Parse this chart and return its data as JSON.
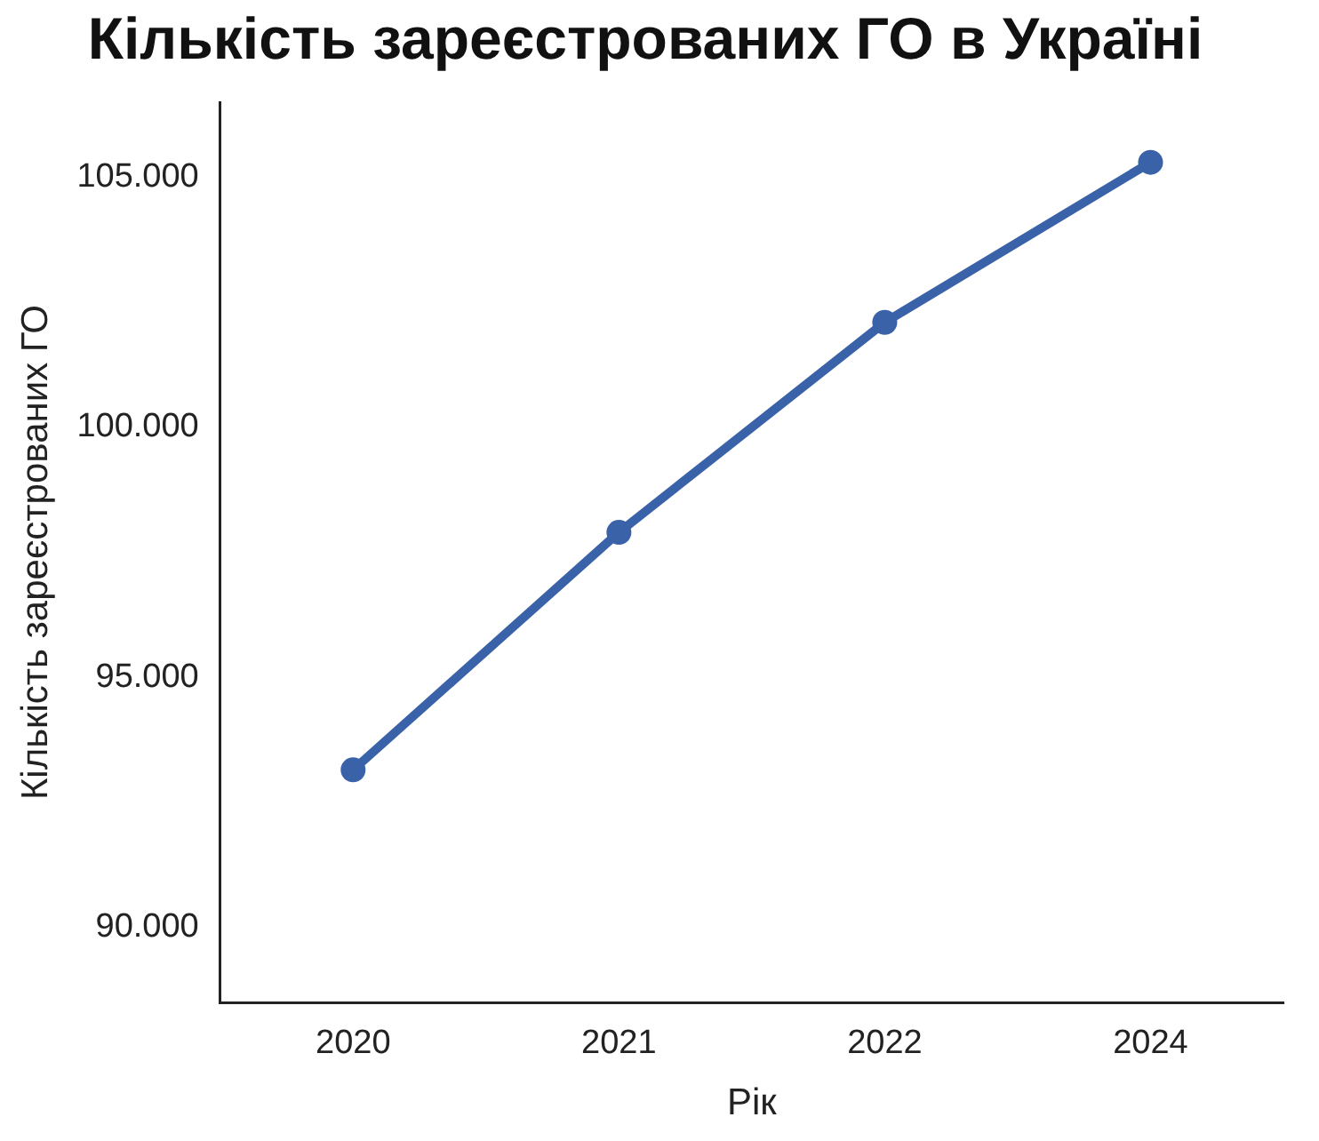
{
  "chart_data": {
    "type": "line",
    "title": "Кількість зареєстрованих ГО в Україні",
    "xlabel": "Рік",
    "ylabel": "Кількість зареєстрованих ГО",
    "categories": [
      "2020",
      "2021",
      "2022",
      "2024"
    ],
    "series": [
      {
        "color": "#3a62a8",
        "values": [
          93150,
          97900,
          102100,
          105300
        ]
      }
    ],
    "ylim": [
      88500,
      106500
    ],
    "yticks": [
      {
        "value": 90000,
        "label": "90.000"
      },
      {
        "value": 95000,
        "label": "95.000"
      },
      {
        "value": 100000,
        "label": "100.000"
      },
      {
        "value": 105000,
        "label": "105.000"
      }
    ],
    "grid": false,
    "legend": false,
    "marker": "circle",
    "line_style": "solid"
  }
}
